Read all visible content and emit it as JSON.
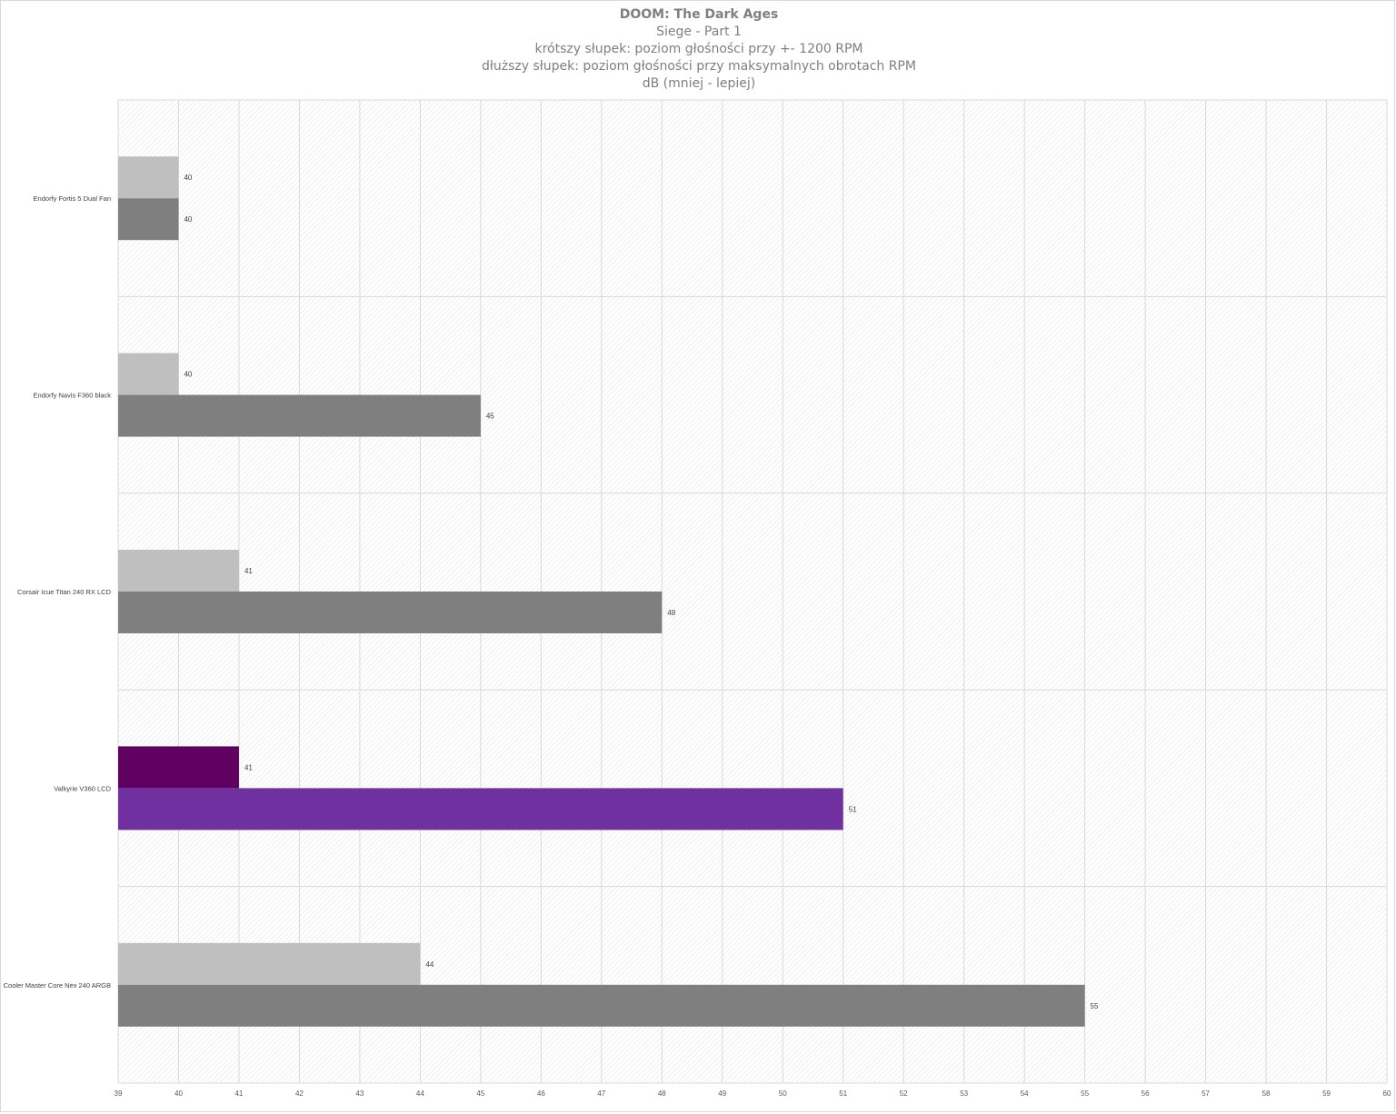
{
  "chart_data": {
    "type": "bar",
    "orientation": "horizontal",
    "title": "DOOM: The Dark Ages",
    "subtitle_lines": [
      "Siege - Part 1",
      "krótszy słupek: poziom głośności przy +- 1200 RPM",
      "dłuższy słupek: poziom głośności przy maksymalnych obrotach RPM",
      "dB (mniej - lepiej)"
    ],
    "categories": [
      "Endorfy Fortis 5 Dual Fan",
      "Endorfy Navis F360 black",
      "Corsair Icue Titan 240 RX LCD",
      "Valkyrie V360 LCD",
      "Cooler Master Core Nex 240 ARGB"
    ],
    "series": [
      {
        "values": [
          40,
          40,
          41,
          41,
          44
        ],
        "color": "#bfbfbf",
        "point_colors": [
          "#bfbfbf",
          "#bfbfbf",
          "#bfbfbf",
          "#600060",
          "#bfbfbf"
        ]
      },
      {
        "values": [
          40,
          45,
          48,
          51,
          55
        ],
        "color": "#7f7f7f",
        "point_colors": [
          "#7f7f7f",
          "#7f7f7f",
          "#7f7f7f",
          "#7030a0",
          "#7f7f7f"
        ]
      }
    ],
    "xlim": [
      39,
      60
    ],
    "x_ticks": [
      "39",
      "40",
      "41",
      "42",
      "43",
      "44",
      "45",
      "46",
      "47",
      "48",
      "49",
      "50",
      "51",
      "52",
      "53",
      "54",
      "55",
      "56",
      "57",
      "58",
      "59",
      "60"
    ],
    "grid": true,
    "data_labels": true,
    "legend": "none"
  }
}
